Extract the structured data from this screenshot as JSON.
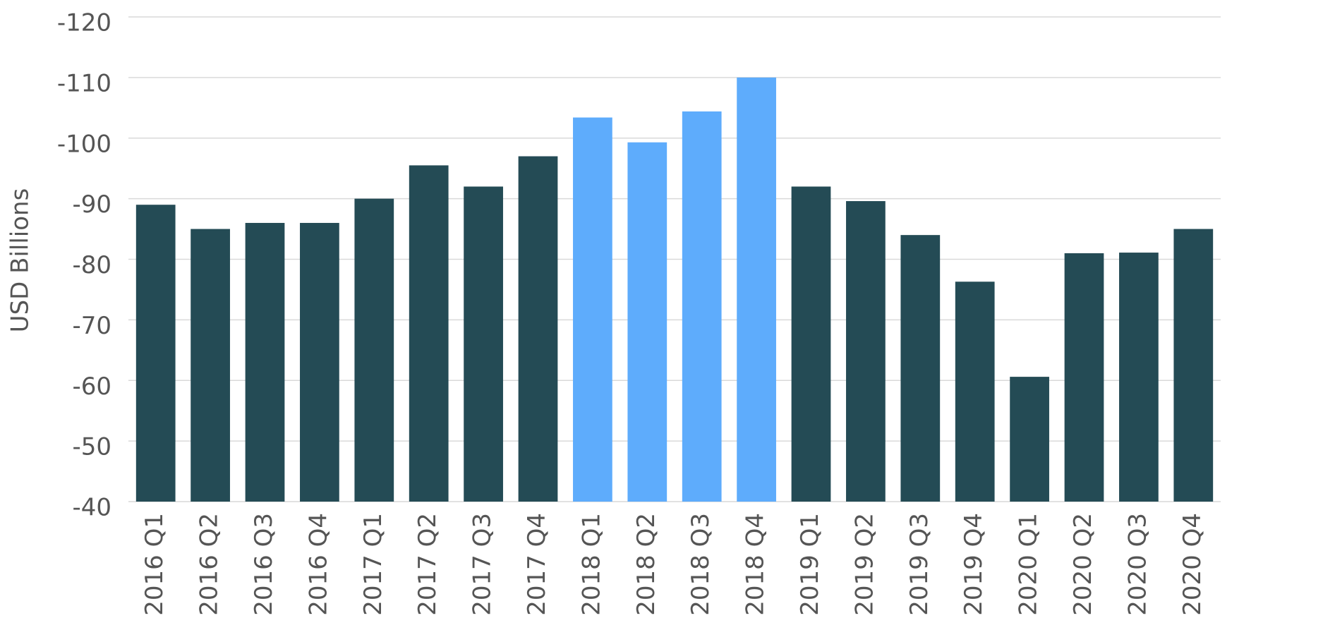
{
  "chart_data": {
    "type": "bar",
    "y_label": "USD Billions",
    "categories": [
      "2016 Q1",
      "2016 Q2",
      "2016 Q3",
      "2016 Q4",
      "2017 Q1",
      "2017 Q2",
      "2017 Q3",
      "2017 Q4",
      "2018 Q1",
      "2018 Q2",
      "2018 Q3",
      "2018 Q4",
      "2019 Q1",
      "2019 Q2",
      "2019 Q3",
      "2019 Q4",
      "2020 Q1",
      "2020 Q2",
      "2020 Q3",
      "2020 Q4"
    ],
    "values": [
      -89,
      -85,
      -86,
      -86,
      -90,
      -95.5,
      -92,
      -97,
      -103.4,
      -99.3,
      -104.4,
      -110,
      -92,
      -89.6,
      -84,
      -76.3,
      -60.6,
      -81,
      -81.1,
      -85
    ],
    "colors": [
      "#244b55",
      "#244b55",
      "#244b55",
      "#244b55",
      "#244b55",
      "#244b55",
      "#244b55",
      "#244b55",
      "#5eacfc",
      "#5eacfc",
      "#5eacfc",
      "#5eacfc",
      "#244b55",
      "#244b55",
      "#244b55",
      "#244b55",
      "#244b55",
      "#244b55",
      "#244b55",
      "#244b55"
    ],
    "ylim": [
      -40,
      -120
    ],
    "yticks": [
      -40,
      -50,
      -60,
      -70,
      -80,
      -90,
      -100,
      -110,
      -120
    ],
    "grid": true
  }
}
